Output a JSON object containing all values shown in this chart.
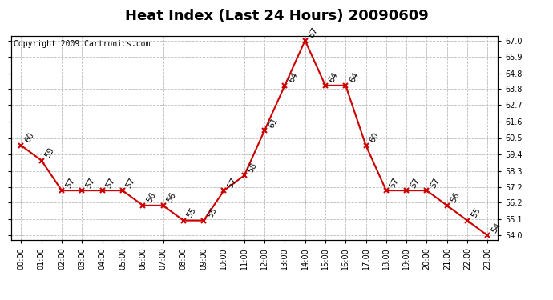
{
  "title": "Heat Index (Last 24 Hours) 20090609",
  "copyright": "Copyright 2009 Cartronics.com",
  "hours": [
    "00:00",
    "01:00",
    "02:00",
    "03:00",
    "04:00",
    "05:00",
    "06:00",
    "07:00",
    "08:00",
    "09:00",
    "10:00",
    "11:00",
    "12:00",
    "13:00",
    "14:00",
    "15:00",
    "16:00",
    "17:00",
    "18:00",
    "19:00",
    "20:00",
    "21:00",
    "22:00",
    "23:00"
  ],
  "values": [
    60,
    59,
    57,
    57,
    57,
    57,
    56,
    56,
    55,
    55,
    57,
    58,
    61,
    64,
    67,
    64,
    64,
    60,
    57,
    57,
    57,
    56,
    55,
    54
  ],
  "line_color": "#cc0000",
  "marker_color": "#cc0000",
  "bg_color": "#ffffff",
  "grid_color": "#bbbbbb",
  "yticks": [
    54.0,
    55.1,
    56.2,
    57.2,
    58.3,
    59.4,
    60.5,
    61.6,
    62.7,
    63.8,
    64.8,
    65.9,
    67.0
  ],
  "ylim_min": 53.7,
  "ylim_max": 67.3,
  "title_fontsize": 13,
  "copyright_fontsize": 7,
  "label_fontsize": 7.5,
  "tick_fontsize": 7
}
